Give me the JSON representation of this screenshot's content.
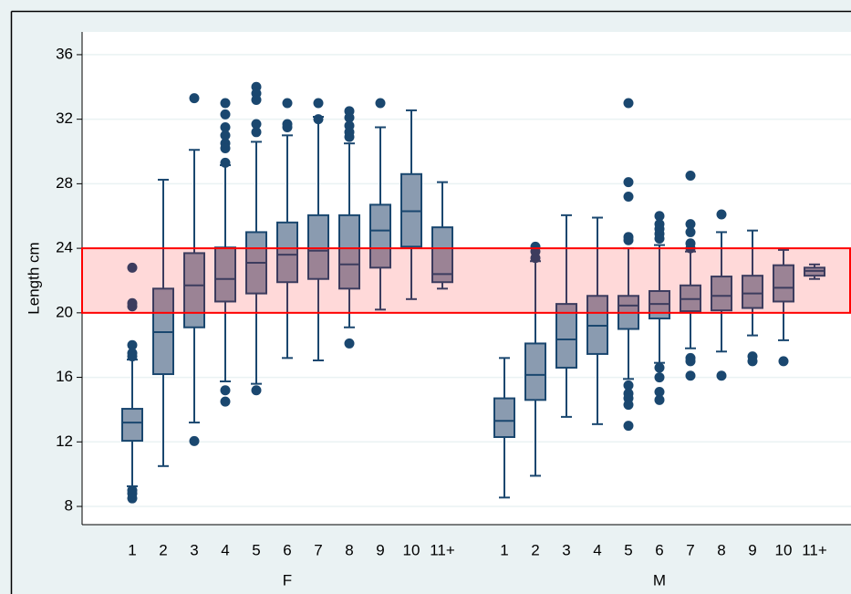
{
  "chart_data": {
    "type": "box",
    "ylabel": "Length cm",
    "ylim": [
      6.87,
      37.41
    ],
    "yticks": [
      8,
      12,
      16,
      20,
      24,
      28,
      32,
      36
    ],
    "grid": true,
    "box_color": "#8a9bb0",
    "line_color": "#1a476f",
    "highlight": {
      "ylim": [
        20,
        24
      ],
      "color": "#ff0000"
    },
    "groups": [
      {
        "name": "F",
        "categories": [
          "1",
          "2",
          "3",
          "4",
          "5",
          "6",
          "7",
          "8",
          "9",
          "10",
          "11+"
        ],
        "boxes": [
          {
            "whislo": 9.25,
            "q1": 12.07,
            "med": 13.2,
            "q3": 14.05,
            "whishi": 17.1,
            "fliers": [
              22.8,
              20.6,
              20.4,
              18.0,
              17.5,
              17.3,
              9.0,
              8.8,
              8.5
            ]
          },
          {
            "whislo": 10.5,
            "q1": 16.2,
            "med": 18.8,
            "q3": 21.5,
            "whishi": 28.25,
            "fliers": []
          },
          {
            "whislo": 13.2,
            "q1": 19.1,
            "med": 21.7,
            "q3": 23.7,
            "whishi": 30.1,
            "fliers": [
              33.3,
              12.05
            ]
          },
          {
            "whislo": 15.75,
            "q1": 20.7,
            "med": 22.1,
            "q3": 24.05,
            "whishi": 29.15,
            "fliers": [
              33.0,
              32.3,
              31.5,
              31.0,
              30.5,
              30.2,
              29.3,
              15.2,
              14.5
            ]
          },
          {
            "whislo": 15.6,
            "q1": 21.2,
            "med": 23.1,
            "q3": 25.0,
            "whishi": 30.6,
            "fliers": [
              34.0,
              33.6,
              33.2,
              31.7,
              31.2,
              15.2
            ]
          },
          {
            "whislo": 17.2,
            "q1": 21.9,
            "med": 23.6,
            "q3": 25.6,
            "whishi": 31.0,
            "fliers": [
              33.0,
              31.7,
              31.5
            ]
          },
          {
            "whislo": 17.05,
            "q1": 22.1,
            "med": 23.85,
            "q3": 26.05,
            "whishi": 32.15,
            "fliers": [
              33.0,
              32.0
            ]
          },
          {
            "whislo": 19.1,
            "q1": 21.5,
            "med": 23.0,
            "q3": 26.05,
            "whishi": 30.5,
            "fliers": [
              32.5,
              32.1,
              31.6,
              31.2,
              30.9,
              18.1
            ]
          },
          {
            "whislo": 20.2,
            "q1": 22.8,
            "med": 25.1,
            "q3": 26.7,
            "whishi": 31.5,
            "fliers": [
              33.0
            ]
          },
          {
            "whislo": 20.85,
            "q1": 24.1,
            "med": 26.3,
            "q3": 28.6,
            "whishi": 32.55,
            "fliers": []
          },
          {
            "whislo": 21.5,
            "q1": 21.9,
            "med": 22.4,
            "q3": 25.3,
            "whishi": 28.1,
            "fliers": []
          }
        ]
      },
      {
        "name": "M",
        "categories": [
          "1",
          "2",
          "3",
          "4",
          "5",
          "6",
          "7",
          "8",
          "9",
          "10",
          "11+"
        ],
        "boxes": [
          {
            "whislo": 8.55,
            "q1": 12.3,
            "med": 13.3,
            "q3": 14.7,
            "whishi": 17.2,
            "fliers": []
          },
          {
            "whislo": 9.9,
            "q1": 14.6,
            "med": 16.15,
            "q3": 18.1,
            "whishi": 23.2,
            "fliers": [
              24.1,
              23.8,
              23.4
            ]
          },
          {
            "whislo": 13.55,
            "q1": 16.6,
            "med": 18.35,
            "q3": 20.55,
            "whishi": 26.05,
            "fliers": []
          },
          {
            "whislo": 13.1,
            "q1": 17.45,
            "med": 19.2,
            "q3": 21.05,
            "whishi": 25.9,
            "fliers": []
          },
          {
            "whislo": 15.9,
            "q1": 19.0,
            "med": 20.45,
            "q3": 21.05,
            "whishi": 24.0,
            "fliers": [
              33.0,
              28.1,
              27.2,
              24.7,
              24.5,
              15.5,
              15.0,
              14.7,
              14.3,
              13.0
            ]
          },
          {
            "whislo": 16.9,
            "q1": 19.65,
            "med": 20.55,
            "q3": 21.35,
            "whishi": 24.2,
            "fliers": [
              26.0,
              25.5,
              25.2,
              24.9,
              24.6,
              16.6,
              16.0,
              15.1,
              14.6
            ]
          },
          {
            "whislo": 17.8,
            "q1": 20.1,
            "med": 20.85,
            "q3": 21.7,
            "whishi": 23.8,
            "fliers": [
              28.5,
              25.5,
              25.0,
              24.3,
              24.0,
              17.2,
              17.0,
              16.1
            ]
          },
          {
            "whislo": 17.6,
            "q1": 20.15,
            "med": 21.05,
            "q3": 22.25,
            "whishi": 25.0,
            "fliers": [
              26.1,
              16.1
            ]
          },
          {
            "whislo": 18.6,
            "q1": 20.3,
            "med": 21.2,
            "q3": 22.3,
            "whishi": 25.1,
            "fliers": [
              17.3,
              17.0
            ]
          },
          {
            "whislo": 18.3,
            "q1": 20.7,
            "med": 21.55,
            "q3": 22.95,
            "whishi": 23.9,
            "fliers": [
              17.0
            ]
          },
          {
            "whislo": 22.1,
            "q1": 22.3,
            "med": 22.6,
            "q3": 22.8,
            "whishi": 23.0,
            "fliers": []
          }
        ]
      }
    ]
  }
}
